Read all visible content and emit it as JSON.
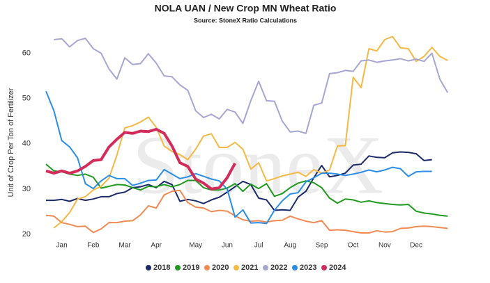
{
  "chart_data": {
    "type": "line",
    "title": "NOLA UAN / New Crop MN Wheat Ratio",
    "subtitle": "Source: StoneX Ratio Calculations",
    "watermark": "StoneX",
    "y_label": "Unit of Crop Per Ton of Fertilizer",
    "categories": [
      null,
      null,
      "Jan",
      null,
      null,
      null,
      "Feb",
      null,
      null,
      null,
      "Mar",
      null,
      null,
      null,
      "Apr",
      null,
      null,
      null,
      null,
      "May",
      null,
      null,
      null,
      "Jun",
      null,
      null,
      null,
      "Jul",
      null,
      null,
      null,
      "Aug",
      null,
      null,
      null,
      "Sep",
      null,
      null,
      null,
      "Oct",
      null,
      null,
      null,
      "Nov",
      null,
      null,
      null,
      "Dec",
      null,
      null,
      null,
      null
    ],
    "ylim": [
      18,
      65
    ],
    "yticks": [
      20,
      30,
      40,
      50,
      60
    ],
    "grid": false,
    "legend": "bottom",
    "series": [
      {
        "name": "2018",
        "color": "#1b2a6b",
        "values": [
          27.5,
          27.5,
          27.7,
          27.3,
          27.9,
          27.5,
          27.8,
          28.3,
          28.3,
          29,
          29.3,
          30.3,
          30.5,
          31,
          30.3,
          31.7,
          31,
          27.3,
          27.7,
          27.4,
          26.8,
          27.6,
          28.2,
          29.3,
          30.5,
          31.7,
          31,
          28,
          27.6,
          25.3,
          25.4,
          25.3,
          28.2,
          29.5,
          32.5,
          35.2,
          32.7,
          33,
          33.5,
          35.3,
          35.5,
          37.3,
          37,
          36.9,
          38,
          38.2,
          38.1,
          37.8,
          36.3,
          36.5,
          null,
          null
        ]
      },
      {
        "name": "2019",
        "color": "#1f9a1f",
        "values": [
          35.5,
          34,
          33.8,
          33.3,
          33,
          33.3,
          32.6,
          30.2,
          30.6,
          31,
          30.9,
          30.3,
          29.8,
          30.6,
          30.5,
          31,
          30.5,
          31,
          31.9,
          31.9,
          30.3,
          29.8,
          29.8,
          30.2,
          31.2,
          29.5,
          31.1,
          30.1,
          31.2,
          28.4,
          29,
          30.3,
          31.3,
          31.8,
          31.4,
          30.3,
          28,
          26.9,
          27.8,
          27.6,
          27.1,
          27.4,
          27,
          26.8,
          26.6,
          26.5,
          26.6,
          25.1,
          24.7,
          24.5,
          24.2,
          24
        ]
      },
      {
        "name": "2020",
        "color": "#f28a52",
        "values": [
          24.2,
          24,
          22.6,
          22.2,
          21.7,
          21.8,
          20.4,
          21.2,
          22.6,
          22.6,
          22.9,
          23,
          24.3,
          26.3,
          25.8,
          28.7,
          29.5,
          29.7,
          27,
          26,
          25.8,
          25,
          25.3,
          25.1,
          24.1,
          23.2,
          22.9,
          23,
          22.7,
          23,
          23.1,
          24,
          23.4,
          22.9,
          22.6,
          23,
          20.9,
          21,
          20.9,
          20.6,
          20.3,
          20.3,
          20.8,
          20.5,
          20.6,
          21.3,
          21.4,
          21.7,
          21.8,
          21.7,
          21.5,
          21.3
        ]
      },
      {
        "name": "2021",
        "color": "#f6b844",
        "values": [
          null,
          21.4,
          22.8,
          24.8,
          27.8,
          28.3,
          29.8,
          30.6,
          32.4,
          37.5,
          43.5,
          44,
          44.8,
          45.9,
          43.6,
          39.5,
          38.3,
          37.6,
          36.5,
          38.8,
          41.7,
          42.2,
          39.2,
          39.2,
          40.3,
          38.8,
          34.4,
          35.8,
          31.8,
          32.3,
          32.9,
          33.3,
          33.7,
          32.8,
          34.3,
          33.5,
          34.2,
          39.5,
          39.6,
          54.7,
          52.4,
          61,
          60.5,
          63,
          63.7,
          61.2,
          61,
          58.2,
          59.3,
          61.3,
          59.3,
          58.4
        ]
      },
      {
        "name": "2022",
        "color": "#a6a6d2",
        "values": [
          null,
          63,
          63.2,
          61.4,
          62.8,
          63.3,
          61,
          60,
          56.5,
          54.3,
          59,
          57.5,
          57.7,
          59.9,
          57.8,
          55,
          54.8,
          53,
          51.8,
          47.3,
          45.8,
          46.5,
          45.5,
          47.6,
          47,
          44.5,
          49.5,
          53.8,
          49.5,
          49.4,
          45,
          42.6,
          42.8,
          42.3,
          48.5,
          49,
          55.5,
          55.7,
          56.2,
          56,
          58.3,
          58.5,
          58,
          58.3,
          58.5,
          58.8,
          58.3,
          58.7,
          58.2,
          60,
          54.3,
          51.3
        ]
      },
      {
        "name": "2023",
        "color": "#2b8ee6",
        "values": [
          51.6,
          47.3,
          40.7,
          39.3,
          36.9,
          31.2,
          30.1,
          31.8,
          33,
          32.3,
          32.3,
          30.8,
          31.3,
          31.9,
          32,
          34.3,
          33.3,
          32.3,
          32.7,
          33.4,
          32.8,
          32.2,
          31.8,
          30,
          23.8,
          25.4,
          22.5,
          22.6,
          22.4,
          25.3,
          27.4,
          28.9,
          29.2,
          31.6,
          32.5,
          33.5,
          33.5,
          33.3,
          33,
          33.3,
          33.7,
          34.2,
          33.8,
          34.2,
          34.8,
          34.5,
          32.8,
          33.8,
          33.9,
          33.9,
          null,
          null
        ]
      },
      {
        "name": "2024",
        "color": "#d12c5a",
        "values": [
          34,
          33.5,
          34,
          33.5,
          34,
          35,
          36.3,
          36.5,
          39.3,
          41,
          42.5,
          42.3,
          42.8,
          42.7,
          43.2,
          42.3,
          39.5,
          35.8,
          35,
          32.2,
          31.3,
          30,
          30.3,
          32.5,
          35.7,
          null,
          null,
          null,
          null,
          null,
          null,
          null,
          null,
          null,
          null,
          null,
          null,
          null,
          null,
          null,
          null,
          null,
          null,
          null,
          null,
          null,
          null,
          null,
          null,
          null,
          null,
          null
        ]
      }
    ]
  }
}
